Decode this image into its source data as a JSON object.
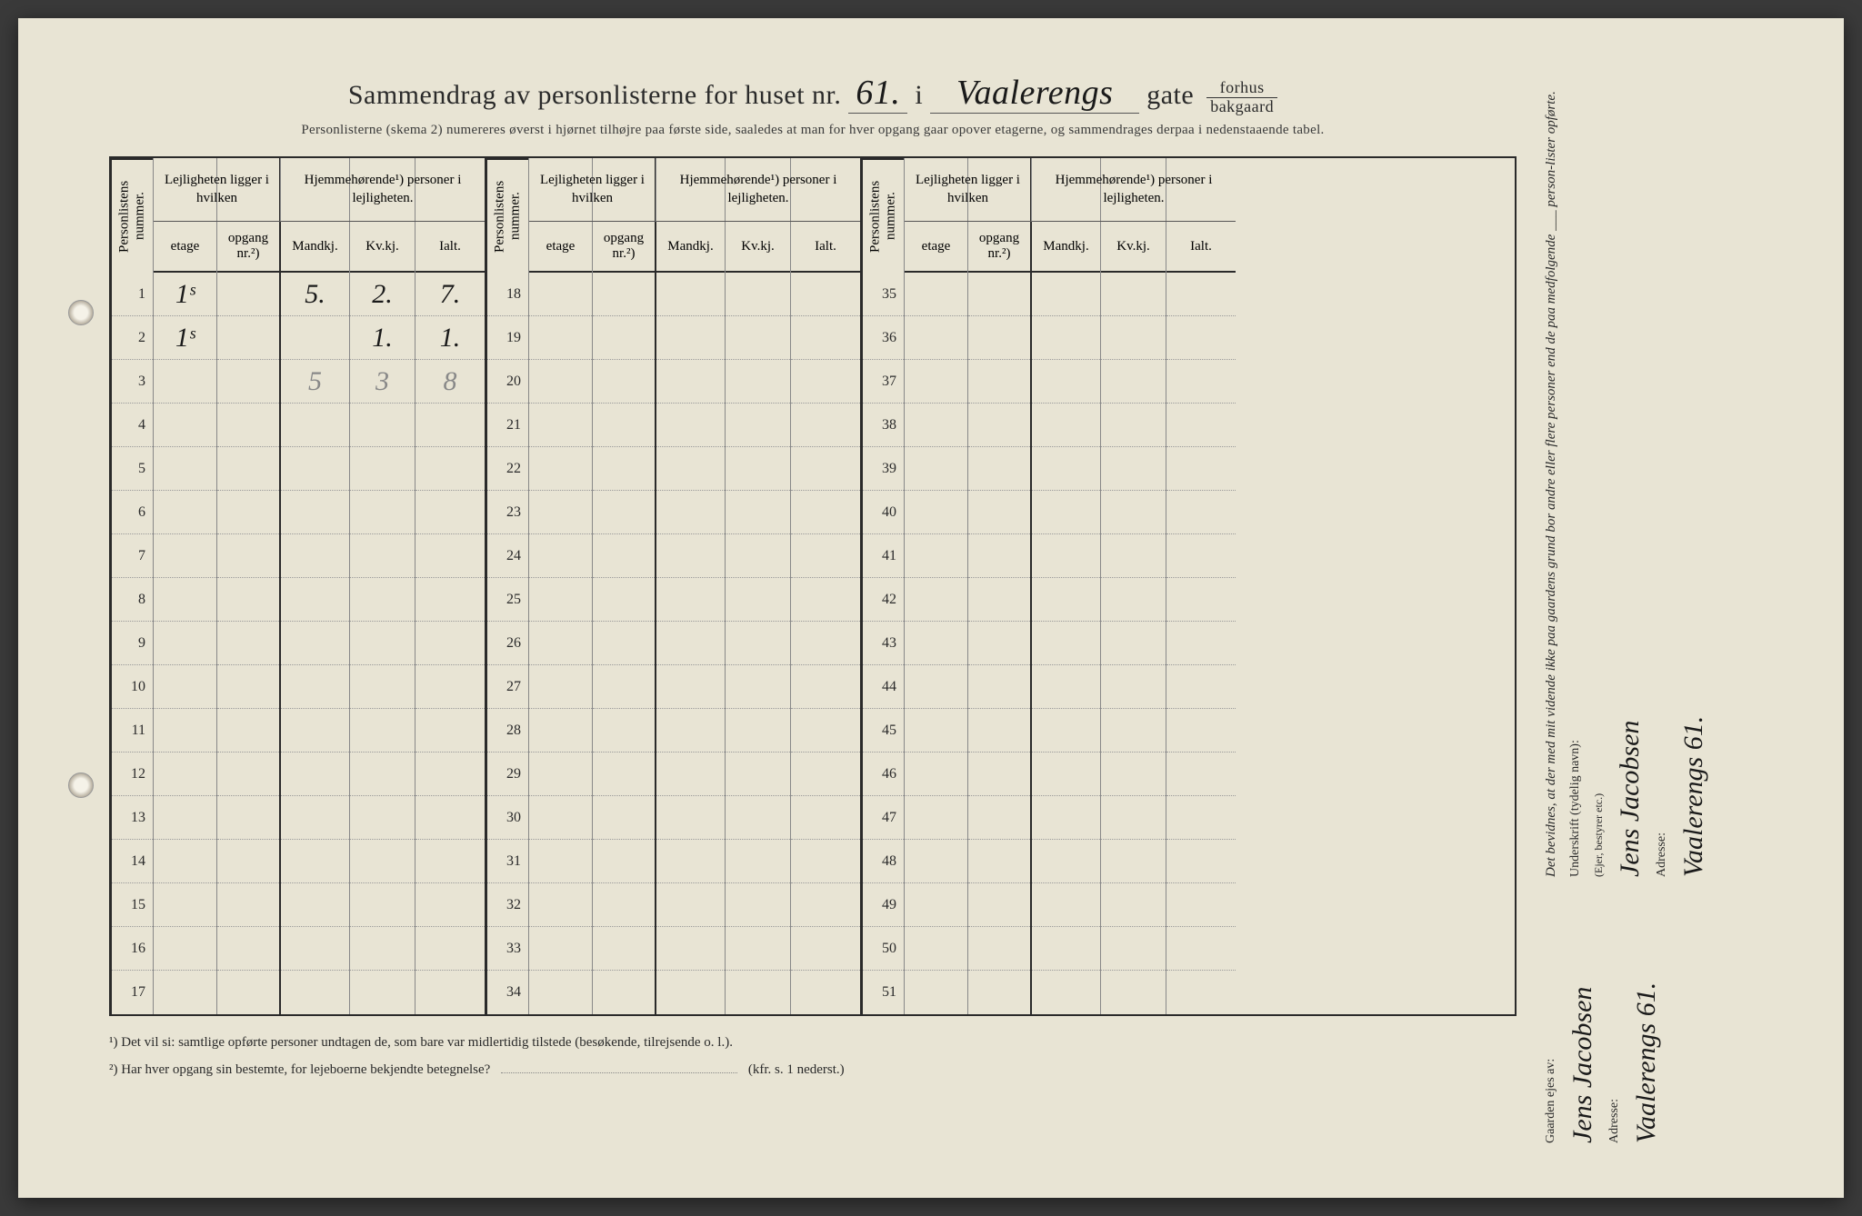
{
  "title": {
    "prefix": "Sammendrag av personlisterne for huset nr.",
    "husnr": "61.",
    "i": "i",
    "street": "Vaalerengs",
    "gate": "gate",
    "forhus": "forhus",
    "bakgaard": "bakgaard"
  },
  "subtitle": "Personlisterne (skema 2) numereres øverst i hjørnet tilhøjre paa første side, saaledes at man for hver opgang gaar opover etagerne, og sammendrages derpaa i nedenstaaende tabel.",
  "headers": {
    "personlistens": "Personlistens nummer.",
    "lejligheten": "Lejligheten ligger i hvilken",
    "hjemme": "Hjemmehørende¹) personer i lejligheten.",
    "etage": "etage",
    "opgang": "opgang nr.²)",
    "mandkj": "Mandkj.",
    "kvkj": "Kv.kj.",
    "ialt": "Ialt."
  },
  "blocks": [
    {
      "start": 1,
      "end": 17
    },
    {
      "start": 18,
      "end": 34
    },
    {
      "start": 35,
      "end": 51
    }
  ],
  "rows": {
    "1": {
      "etage": "1ˢ",
      "mandkj": "5.",
      "kvkj": "2.",
      "ialt": "7."
    },
    "2": {
      "etage": "1ˢ",
      "kvkj": "1.",
      "ialt": "1."
    },
    "3": {
      "mandkj": "5",
      "kvkj": "3",
      "ialt": "8",
      "pencil": true
    }
  },
  "footnotes": {
    "n1": "¹) Det vil si: samtlige opførte personer undtagen de, som bare var midlertidig tilstede (besøkende, tilrejsende o. l.).",
    "n2": "²) Har hver opgang sin bestemte, for lejeboerne bekjendte betegnelse?",
    "n2_ref": "(kfr. s. 1 nederst.)"
  },
  "sidebar": {
    "gaarden": "Gaarden ejes av:",
    "owner": "Jens Jacobsen",
    "adresse_label": "Adresse:",
    "adresse": "Vaalerengs 61.",
    "bevidnes": "Det bevidnes, at der med mit vidende ikke paa gaardens grund bor andre eller flere personer end de paa medfolgende ___ person-lister opførte.",
    "underskrift": "Underskrift (tydelig navn):",
    "ejer": "(Ejer, bestyrer etc.)",
    "sig_name": "Jens Jacobsen",
    "sig_addr": "Vaalerengs 61."
  }
}
